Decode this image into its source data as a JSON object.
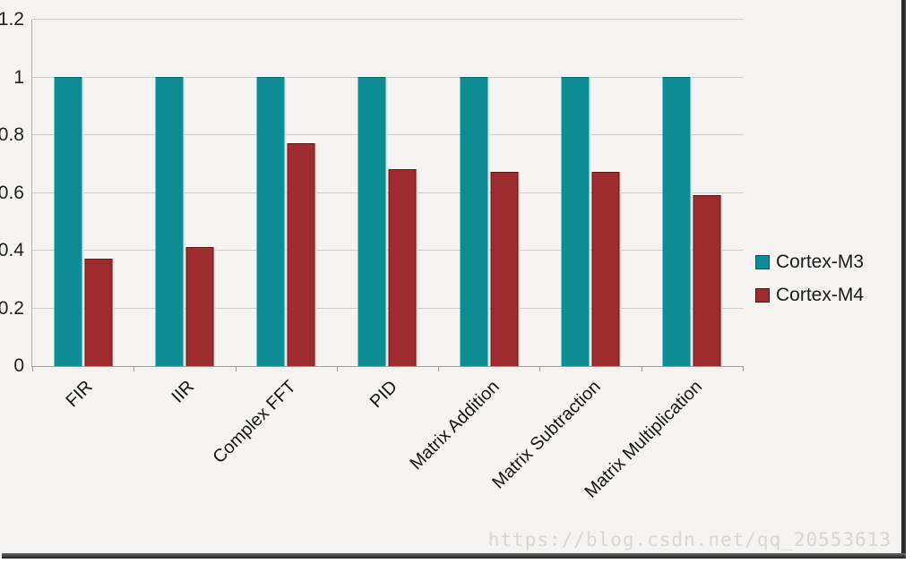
{
  "chart_data": {
    "type": "bar",
    "categories": [
      "FIR",
      "IIR",
      "Complex FFT",
      "PID",
      "Matrix Addition",
      "Matrix Subtraction",
      "Matrix Multiplication"
    ],
    "series": [
      {
        "name": "Cortex-M3",
        "color": "#0e8c93",
        "values": [
          1,
          1,
          1,
          1,
          1,
          1,
          1
        ]
      },
      {
        "name": "Cortex-M4",
        "color": "#9e2b2d",
        "values": [
          0.37,
          0.41,
          0.77,
          0.68,
          0.67,
          0.67,
          0.59
        ]
      }
    ],
    "title": "",
    "xlabel": "",
    "ylabel": "",
    "ylim": [
      0,
      1.2
    ],
    "yticks": [
      0,
      0.2,
      0.4,
      0.6,
      0.8,
      1,
      1.2
    ],
    "ytick_labels": [
      "0",
      "0.2",
      "0.4",
      "0.6",
      "0.8",
      "1",
      "1.2"
    ],
    "grid": true,
    "legend_position": "right"
  },
  "watermark": {
    "text": "https://blog.csdn.net/qq_20553613"
  },
  "colors": {
    "background": "#f5f4f2",
    "gridline": "#cccccc",
    "frame_border": "#2e2e2e",
    "cortex_m3": "#0e8c93",
    "cortex_m4": "#9e2b2d"
  }
}
